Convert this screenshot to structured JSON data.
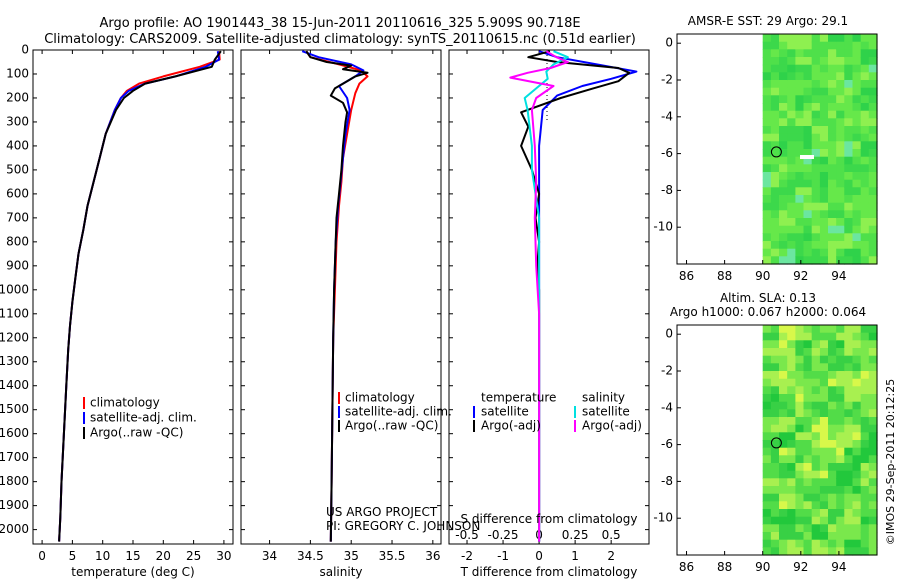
{
  "title": {
    "line1": "Argo profile: AO 1901443_38 15-Jun-2011 20110616_325 5.909S 90.718E",
    "line2": "Climatology: CARS2009. Satellite-adjusted climatology: synTS_20110615.nc (0.51d earlier)"
  },
  "credits": {
    "project": "US ARGO PROJECT",
    "pi": "PI: GREGORY C. JOHNSON",
    "stamp": "©IMOS 29-Sep-2011 20:12:25"
  },
  "colors": {
    "climatology": "#ff0000",
    "satellite": "#0000ff",
    "argo": "#000000",
    "sat_s": "#00e0e0",
    "argo_s": "#ff00ff"
  },
  "chart_data": [
    {
      "type": "line",
      "panel": "temperature",
      "xlabel": "temperature (deg C)",
      "ylabel": "",
      "xlim": [
        -1.5,
        31.5
      ],
      "ylim": [
        2060,
        0
      ],
      "xticks": [
        0,
        5,
        10,
        15,
        20,
        25,
        30
      ],
      "yticks": [
        0,
        100,
        200,
        300,
        400,
        500,
        600,
        700,
        800,
        900,
        1000,
        1100,
        1200,
        1300,
        1400,
        1500,
        1600,
        1700,
        1800,
        1900,
        2000
      ],
      "legend": [
        "climatology",
        "satellite-adj. clim.",
        "Argo(..raw -QC)"
      ],
      "series": [
        {
          "name": "climatology",
          "color": "#ff0000",
          "points": [
            [
              29.2,
              5
            ],
            [
              29.3,
              40
            ],
            [
              26,
              70
            ],
            [
              20,
              110
            ],
            [
              16,
              140
            ],
            [
              14,
              170
            ],
            [
              13,
              200
            ],
            [
              12,
              250
            ],
            [
              10.5,
              350
            ],
            [
              9.5,
              450
            ],
            [
              8.5,
              550
            ],
            [
              7.5,
              650
            ],
            [
              6.8,
              750
            ],
            [
              6,
              850
            ],
            [
              5.5,
              950
            ],
            [
              5,
              1050
            ],
            [
              4.6,
              1150
            ],
            [
              4.3,
              1250
            ],
            [
              4,
              1400
            ],
            [
              3.6,
              1600
            ],
            [
              3.2,
              1800
            ],
            [
              3,
              1950
            ],
            [
              2.8,
              2050
            ]
          ]
        },
        {
          "name": "satellite-adj. clim.",
          "color": "#0000ff",
          "points": [
            [
              29.0,
              5
            ],
            [
              29.2,
              40
            ],
            [
              27,
              70
            ],
            [
              22,
              110
            ],
            [
              17,
              140
            ],
            [
              14.3,
              170
            ],
            [
              13,
              200
            ],
            [
              12,
              250
            ],
            [
              10.5,
              350
            ],
            [
              9.5,
              450
            ],
            [
              8.5,
              550
            ],
            [
              7.5,
              650
            ],
            [
              6.8,
              750
            ],
            [
              6,
              850
            ],
            [
              5.5,
              950
            ],
            [
              5,
              1050
            ],
            [
              4.6,
              1150
            ],
            [
              4.3,
              1250
            ],
            [
              4,
              1400
            ],
            [
              3.6,
              1600
            ],
            [
              3.2,
              1800
            ],
            [
              3,
              1950
            ],
            [
              2.8,
              2050
            ]
          ]
        },
        {
          "name": "Argo(..raw -QC)",
          "color": "#000000",
          "points": [
            [
              29.5,
              5
            ],
            [
              28.5,
              40
            ],
            [
              28,
              70
            ],
            [
              22,
              110
            ],
            [
              17,
              140
            ],
            [
              15,
              170
            ],
            [
              13.5,
              200
            ],
            [
              12.2,
              250
            ],
            [
              10.5,
              350
            ],
            [
              9.5,
              450
            ],
            [
              8.5,
              550
            ],
            [
              7.5,
              650
            ],
            [
              6.8,
              750
            ],
            [
              6,
              850
            ],
            [
              5.5,
              950
            ],
            [
              5,
              1050
            ],
            [
              4.6,
              1150
            ],
            [
              4.3,
              1250
            ],
            [
              4,
              1400
            ],
            [
              3.6,
              1600
            ],
            [
              3.2,
              1800
            ],
            [
              3,
              1950
            ],
            [
              2.8,
              2050
            ]
          ]
        }
      ]
    },
    {
      "type": "line",
      "panel": "salinity",
      "xlabel": "salinity",
      "ylabel": "",
      "xlim": [
        33.65,
        36.1
      ],
      "ylim": [
        2060,
        0
      ],
      "xticks": [
        34,
        34.5,
        35,
        35.5,
        36
      ],
      "legend": [
        "climatology",
        "satellite-adj. clim.",
        "Argo(..raw -QC)"
      ],
      "series": [
        {
          "name": "climatology",
          "color": "#ff0000",
          "points": [
            [
              34.45,
              5
            ],
            [
              34.5,
              30
            ],
            [
              34.85,
              60
            ],
            [
              35.12,
              85
            ],
            [
              35.2,
              110
            ],
            [
              35.1,
              140
            ],
            [
              35.05,
              180
            ],
            [
              35.0,
              250
            ],
            [
              34.95,
              350
            ],
            [
              34.9,
              450
            ],
            [
              34.88,
              550
            ],
            [
              34.85,
              650
            ],
            [
              34.82,
              800
            ],
            [
              34.8,
              1000
            ],
            [
              34.78,
              1200
            ],
            [
              34.77,
              1500
            ],
            [
              34.76,
              1800
            ],
            [
              34.75,
              2050
            ]
          ]
        },
        {
          "name": "satellite-adj. clim.",
          "color": "#0000ff",
          "points": [
            [
              34.4,
              5
            ],
            [
              34.6,
              30
            ],
            [
              35.0,
              60
            ],
            [
              35.15,
              85
            ],
            [
              35.05,
              110
            ],
            [
              34.85,
              150
            ],
            [
              34.95,
              200
            ],
            [
              34.98,
              250
            ],
            [
              34.93,
              350
            ],
            [
              34.9,
              450
            ],
            [
              34.87,
              550
            ],
            [
              34.84,
              650
            ],
            [
              34.81,
              800
            ],
            [
              34.79,
              1000
            ],
            [
              34.78,
              1200
            ],
            [
              34.77,
              1500
            ],
            [
              34.76,
              1800
            ],
            [
              34.75,
              2050
            ]
          ]
        },
        {
          "name": "Argo(..raw -QC)",
          "color": "#000000",
          "points": [
            [
              34.45,
              5
            ],
            [
              34.5,
              30
            ],
            [
              34.7,
              50
            ],
            [
              35.0,
              65
            ],
            [
              34.9,
              80
            ],
            [
              35.2,
              95
            ],
            [
              35.05,
              110
            ],
            [
              34.95,
              130
            ],
            [
              34.8,
              160
            ],
            [
              34.75,
              190
            ],
            [
              34.9,
              220
            ],
            [
              34.95,
              260
            ],
            [
              34.93,
              300
            ],
            [
              34.9,
              400
            ],
            [
              34.88,
              500
            ],
            [
              34.85,
              600
            ],
            [
              34.82,
              700
            ],
            [
              34.81,
              800
            ],
            [
              34.79,
              1000
            ],
            [
              34.78,
              1200
            ],
            [
              34.77,
              1500
            ],
            [
              34.76,
              1800
            ],
            [
              34.75,
              2050
            ]
          ]
        }
      ]
    },
    {
      "type": "line",
      "panel": "difference",
      "xlabel": "T difference from climatology",
      "x2label": "S difference from climatology",
      "ylabel": "",
      "xlim": [
        -2.5,
        3.05
      ],
      "x2lim": [
        -0.625,
        0.7625
      ],
      "ylim": [
        2060,
        0
      ],
      "xticks": [
        -2,
        -1,
        0,
        1,
        2
      ],
      "x2ticks": [
        -0.5,
        -0.25,
        0,
        0.25,
        0.5
      ],
      "x2ticklabels": [
        "-0.5",
        "-0.25",
        "0",
        "0.25",
        "0.5"
      ],
      "legend_groups": [
        {
          "heading": "temperature",
          "items": [
            "satellite",
            "Argo(-adj)"
          ]
        },
        {
          "heading": "salinity",
          "items": [
            "satellite",
            "Argo(-adj)"
          ]
        }
      ],
      "series": [
        {
          "name": "temperature satellite",
          "color": "#0000ff",
          "axis": "T",
          "points": [
            [
              0,
              5
            ],
            [
              0.5,
              30
            ],
            [
              1.6,
              60
            ],
            [
              2.7,
              90
            ],
            [
              2.0,
              120
            ],
            [
              1.2,
              150
            ],
            [
              0.5,
              190
            ],
            [
              0.1,
              250
            ],
            [
              0,
              400
            ],
            [
              0,
              700
            ],
            [
              0,
              1000
            ],
            [
              0,
              1500
            ],
            [
              0,
              2050
            ]
          ]
        },
        {
          "name": "temperature Argo(-adj)",
          "color": "#000000",
          "axis": "T",
          "points": [
            [
              0.3,
              5
            ],
            [
              -0.3,
              30
            ],
            [
              0.5,
              50
            ],
            [
              2.2,
              75
            ],
            [
              2.5,
              95
            ],
            [
              2.2,
              130
            ],
            [
              1.5,
              160
            ],
            [
              0.6,
              200
            ],
            [
              -0.5,
              260
            ],
            [
              -0.3,
              320
            ],
            [
              -0.5,
              400
            ],
            [
              -0.2,
              500
            ],
            [
              0,
              600
            ],
            [
              -0.1,
              700
            ],
            [
              0,
              800
            ],
            [
              -0.05,
              900
            ],
            [
              0,
              1000
            ],
            [
              0,
              1200
            ],
            [
              0,
              1500
            ],
            [
              0,
              1800
            ],
            [
              0,
              2050
            ]
          ]
        },
        {
          "name": "salinity satellite",
          "color": "#00e0e0",
          "axis": "S",
          "points": [
            [
              0.1,
              5
            ],
            [
              0.2,
              30
            ],
            [
              0.1,
              60
            ],
            [
              0.05,
              90
            ],
            [
              0.06,
              120
            ],
            [
              -0.02,
              160
            ],
            [
              -0.1,
              200
            ],
            [
              -0.08,
              250
            ],
            [
              -0.05,
              400
            ],
            [
              -0.05,
              500
            ],
            [
              0,
              700
            ],
            [
              0,
              1000
            ],
            [
              0,
              1500
            ],
            [
              0,
              2050
            ]
          ]
        },
        {
          "name": "salinity Argo(-adj)",
          "color": "#ff00ff",
          "axis": "S",
          "points": [
            [
              0.05,
              5
            ],
            [
              0.12,
              30
            ],
            [
              0.2,
              50
            ],
            [
              0.08,
              75
            ],
            [
              -0.08,
              95
            ],
            [
              -0.2,
              115
            ],
            [
              0.1,
              150
            ],
            [
              -0.02,
              200
            ],
            [
              -0.05,
              250
            ],
            [
              -0.03,
              400
            ],
            [
              -0.02,
              550
            ],
            [
              -0.03,
              700
            ],
            [
              -0.02,
              900
            ],
            [
              0,
              1100
            ],
            [
              0,
              1500
            ],
            [
              0,
              2050
            ]
          ]
        }
      ]
    },
    {
      "type": "heatmap",
      "panel": "sst-map",
      "title": "AMSR-E SST: 29 Argo: 29.1",
      "xlim": [
        85.5,
        96
      ],
      "ylim": [
        -12,
        0.5
      ],
      "xticks": [
        86,
        88,
        90,
        92,
        94
      ],
      "yticks": [
        0,
        -2,
        -4,
        -6,
        -8,
        -10
      ],
      "data_lon_min": 90,
      "argo_position": [
        90.718,
        -5.909
      ]
    },
    {
      "type": "heatmap",
      "panel": "sla-map",
      "title": "Altim. SLA: 0.13",
      "subtitle": "Argo h1000: 0.067 h2000: 0.064",
      "xlim": [
        85.5,
        96
      ],
      "ylim": [
        -12,
        0.5
      ],
      "xticks": [
        86,
        88,
        90,
        92,
        94
      ],
      "yticks": [
        0,
        -2,
        -4,
        -6,
        -8,
        -10
      ],
      "data_lon_min": 90,
      "argo_position": [
        90.718,
        -5.909
      ]
    }
  ]
}
